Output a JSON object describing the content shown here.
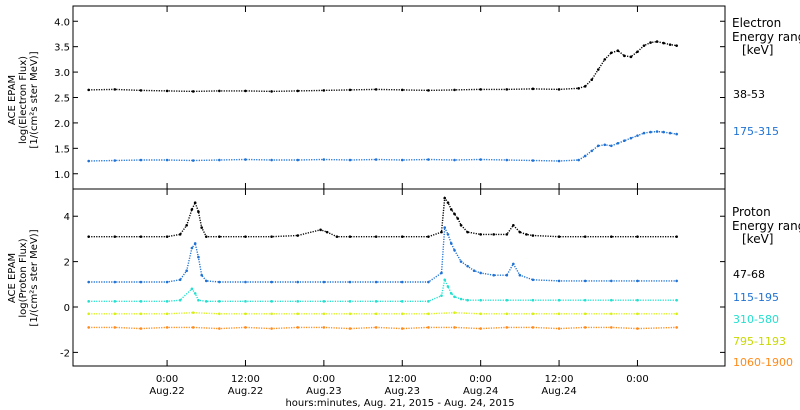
{
  "chart_data": [
    {
      "type": "scatter",
      "ylabel": [
        "ACE EPAM",
        "log(Electron Flux)",
        "[1/(cm²s ster MeV)]"
      ],
      "ylim": [
        0.7,
        4.3
      ],
      "yticks": [
        "1.0",
        "1.5",
        "2.0",
        "2.5",
        "3.0",
        "3.5",
        "4.0"
      ],
      "yticks_values": [
        1.0,
        1.5,
        2.0,
        2.5,
        3.0,
        3.5,
        4.0
      ],
      "legend_title": [
        "Electron",
        "Energy ranges",
        "[keV]"
      ],
      "series": [
        {
          "name": "38-53",
          "color": "#000000",
          "x": [
            -12,
            -8,
            -4,
            0,
            4,
            8,
            12,
            16,
            20,
            24,
            28,
            32,
            36,
            40,
            44,
            48,
            52,
            56,
            60,
            63,
            64,
            65,
            66,
            67,
            68,
            69,
            70,
            71,
            72,
            73,
            74,
            75,
            76,
            77,
            78
          ],
          "y": [
            2.65,
            2.66,
            2.64,
            2.63,
            2.62,
            2.63,
            2.63,
            2.62,
            2.63,
            2.64,
            2.65,
            2.66,
            2.65,
            2.64,
            2.65,
            2.66,
            2.66,
            2.67,
            2.66,
            2.68,
            2.72,
            2.85,
            3.05,
            3.25,
            3.38,
            3.42,
            3.32,
            3.3,
            3.4,
            3.52,
            3.58,
            3.6,
            3.57,
            3.54,
            3.52
          ]
        },
        {
          "name": "175-315",
          "color": "#1f72d4",
          "x": [
            -12,
            -8,
            -4,
            0,
            4,
            8,
            12,
            16,
            20,
            24,
            28,
            32,
            36,
            40,
            44,
            48,
            52,
            56,
            60,
            63,
            64,
            65,
            66,
            67,
            68,
            69,
            70,
            71,
            72,
            73,
            74,
            75,
            76,
            77,
            78
          ],
          "y": [
            1.25,
            1.26,
            1.27,
            1.27,
            1.26,
            1.27,
            1.28,
            1.27,
            1.27,
            1.28,
            1.27,
            1.28,
            1.27,
            1.28,
            1.27,
            1.28,
            1.27,
            1.26,
            1.25,
            1.27,
            1.35,
            1.45,
            1.55,
            1.57,
            1.55,
            1.6,
            1.65,
            1.7,
            1.75,
            1.8,
            1.82,
            1.83,
            1.82,
            1.8,
            1.78
          ]
        }
      ]
    },
    {
      "type": "scatter",
      "xlabel": "hours:minutes, Aug. 21, 2015 - Aug. 24, 2015",
      "ylabel": [
        "ACE EPAM",
        "log(Proton Flux)",
        "[1/(cm²s ster MeV)]"
      ],
      "ylim": [
        -2.6,
        5.2
      ],
      "yticks": [
        "-2",
        "0",
        "2",
        "4"
      ],
      "yticks_values": [
        -2,
        0,
        2,
        4
      ],
      "xlim": [
        -14.4,
        85.4
      ],
      "xticks_values": [
        0,
        12,
        24,
        36,
        48,
        60,
        72
      ],
      "xticks_time": [
        "0:00",
        "12:00",
        "0:00",
        "12:00",
        "0:00",
        "12:00",
        "0:00"
      ],
      "xticks_date": [
        "Aug.22",
        "Aug.22",
        "Aug.23",
        "Aug.23",
        "Aug.24",
        "Aug.24",
        ""
      ],
      "legend_title": [
        "Proton",
        "Energy ranges",
        "[keV]"
      ],
      "series": [
        {
          "name": "47-68",
          "color": "#000000",
          "x": [
            -12,
            -8,
            -4,
            0,
            2,
            3,
            3.8,
            4.3,
            4.8,
            5.3,
            6,
            8,
            12,
            16,
            20,
            23.5,
            24.5,
            26,
            28,
            32,
            36,
            40,
            42,
            42.5,
            43,
            43.5,
            44,
            44.5,
            45,
            46,
            48,
            50,
            52,
            53,
            54,
            55,
            56,
            60,
            64,
            68,
            72,
            78
          ],
          "y": [
            3.1,
            3.1,
            3.1,
            3.1,
            3.2,
            3.6,
            4.3,
            4.6,
            4.2,
            3.5,
            3.1,
            3.1,
            3.1,
            3.1,
            3.15,
            3.4,
            3.3,
            3.1,
            3.1,
            3.1,
            3.1,
            3.1,
            3.3,
            4.8,
            4.6,
            4.3,
            4.1,
            3.9,
            3.6,
            3.3,
            3.2,
            3.2,
            3.2,
            3.6,
            3.3,
            3.2,
            3.15,
            3.1,
            3.1,
            3.1,
            3.1,
            3.1
          ]
        },
        {
          "name": "115-195",
          "color": "#1f72d4",
          "x": [
            -12,
            -8,
            -4,
            0,
            2,
            3,
            3.8,
            4.3,
            4.8,
            5.3,
            6,
            8,
            12,
            16,
            20,
            24,
            28,
            32,
            36,
            40,
            42,
            42.5,
            43,
            43.5,
            44,
            45,
            46,
            47,
            48,
            50,
            52,
            53,
            54,
            56,
            60,
            64,
            68,
            72,
            78
          ],
          "y": [
            1.1,
            1.1,
            1.1,
            1.1,
            1.2,
            1.6,
            2.6,
            2.8,
            2.2,
            1.4,
            1.15,
            1.1,
            1.1,
            1.1,
            1.1,
            1.1,
            1.1,
            1.1,
            1.1,
            1.1,
            1.5,
            3.5,
            3.2,
            2.8,
            2.5,
            2.0,
            1.8,
            1.6,
            1.5,
            1.4,
            1.4,
            1.9,
            1.4,
            1.2,
            1.15,
            1.15,
            1.15,
            1.15,
            1.15
          ]
        },
        {
          "name": "310-580",
          "color": "#22e0cf",
          "x": [
            -12,
            -8,
            -4,
            0,
            2,
            3.8,
            4.3,
            4.8,
            6,
            8,
            12,
            16,
            20,
            24,
            28,
            32,
            36,
            40,
            42,
            42.5,
            43,
            43.5,
            44,
            45,
            46,
            48,
            52,
            56,
            60,
            64,
            68,
            72,
            78
          ],
          "y": [
            0.25,
            0.25,
            0.25,
            0.25,
            0.3,
            0.8,
            0.6,
            0.3,
            0.25,
            0.25,
            0.25,
            0.25,
            0.25,
            0.25,
            0.25,
            0.25,
            0.25,
            0.25,
            0.5,
            1.2,
            0.9,
            0.6,
            0.45,
            0.35,
            0.3,
            0.3,
            0.3,
            0.3,
            0.3,
            0.3,
            0.3,
            0.3,
            0.3
          ]
        },
        {
          "name": "795-1193",
          "color": "#d8f010",
          "x": [
            -12,
            -8,
            -4,
            0,
            4,
            8,
            12,
            16,
            20,
            24,
            28,
            32,
            36,
            40,
            44,
            48,
            52,
            56,
            60,
            64,
            68,
            72,
            78
          ],
          "y": [
            -0.3,
            -0.3,
            -0.3,
            -0.3,
            -0.25,
            -0.3,
            -0.3,
            -0.3,
            -0.3,
            -0.3,
            -0.3,
            -0.3,
            -0.3,
            -0.3,
            -0.25,
            -0.3,
            -0.3,
            -0.3,
            -0.3,
            -0.3,
            -0.3,
            -0.3,
            -0.3
          ]
        },
        {
          "name": "1060-1900",
          "color": "#ff8a1a",
          "x": [
            -12,
            -8,
            -4,
            0,
            4,
            8,
            12,
            16,
            20,
            24,
            28,
            32,
            36,
            40,
            44,
            48,
            52,
            56,
            60,
            64,
            68,
            72,
            78
          ],
          "y": [
            -0.9,
            -0.9,
            -0.95,
            -0.9,
            -0.9,
            -0.95,
            -0.9,
            -0.95,
            -0.9,
            -0.9,
            -0.95,
            -0.9,
            -0.95,
            -0.9,
            -0.9,
            -0.95,
            -0.9,
            -0.9,
            -0.95,
            -0.9,
            -0.9,
            -0.95,
            -0.9
          ]
        }
      ]
    }
  ]
}
